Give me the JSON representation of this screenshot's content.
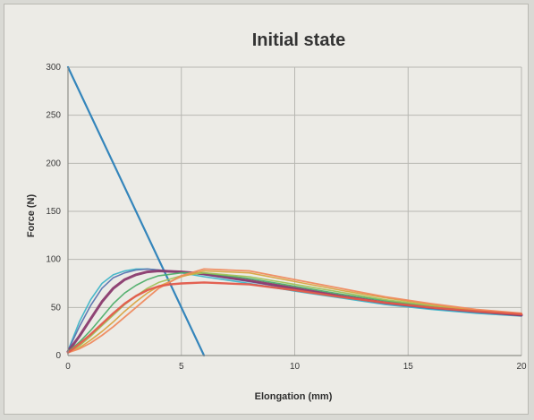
{
  "chart_data": {
    "type": "line",
    "title": "Initial state",
    "xlabel": "Elongation (mm)",
    "ylabel": "Force (N)",
    "xlim": [
      0,
      20
    ],
    "ylim": [
      0,
      300
    ],
    "xticks": [
      0,
      5,
      10,
      15,
      20
    ],
    "yticks": [
      0,
      50,
      100,
      150,
      200,
      250,
      300
    ],
    "grid": true,
    "legend": "none",
    "series": [
      {
        "color": "#2a7fb8",
        "width": 2.2,
        "x": [
          0,
          6
        ],
        "y": [
          300,
          0
        ]
      },
      {
        "color": "#3fb5c8",
        "width": 1.6,
        "x": [
          0,
          0.5,
          1,
          1.5,
          2,
          2.5,
          3,
          3.5,
          4,
          5,
          6,
          8,
          10,
          12,
          14,
          16,
          18,
          20
        ],
        "y": [
          5,
          35,
          58,
          75,
          84,
          88,
          90,
          90,
          89,
          86,
          82,
          75,
          67,
          60,
          53,
          48,
          44,
          41
        ]
      },
      {
        "color": "#5a74b0",
        "width": 1.6,
        "x": [
          0,
          0.5,
          1,
          1.5,
          2,
          2.5,
          3,
          3.5,
          4,
          5,
          6,
          8,
          10,
          12,
          14,
          16,
          18,
          20
        ],
        "y": [
          5,
          30,
          52,
          70,
          81,
          86,
          89,
          90,
          89,
          87,
          84,
          77,
          69,
          61,
          54,
          49,
          45,
          42
        ]
      },
      {
        "color": "#8a3a6e",
        "width": 3.0,
        "x": [
          0,
          0.5,
          1,
          1.5,
          2,
          2.5,
          3,
          3.5,
          4,
          5,
          6,
          8,
          10,
          12,
          14,
          16,
          18,
          20
        ],
        "y": [
          4,
          20,
          38,
          56,
          70,
          79,
          84,
          87,
          88,
          87,
          85,
          78,
          70,
          62,
          55,
          50,
          46,
          42
        ]
      },
      {
        "color": "#4fae6a",
        "width": 1.6,
        "x": [
          0,
          0.5,
          1,
          1.5,
          2,
          2.5,
          3,
          3.5,
          4,
          5,
          6,
          8,
          10,
          12,
          14,
          16,
          18,
          20
        ],
        "y": [
          4,
          14,
          26,
          40,
          54,
          65,
          73,
          79,
          83,
          86,
          86,
          80,
          72,
          64,
          57,
          51,
          46,
          43
        ]
      },
      {
        "color": "#9fc25a",
        "width": 1.6,
        "x": [
          0,
          0.5,
          1,
          1.5,
          2,
          2.5,
          3,
          3.5,
          4,
          5,
          6,
          8,
          10,
          12,
          14,
          16,
          18,
          20
        ],
        "y": [
          3,
          10,
          20,
          31,
          42,
          53,
          62,
          70,
          76,
          83,
          86,
          82,
          74,
          66,
          58,
          52,
          47,
          43
        ]
      },
      {
        "color": "#d9a441",
        "width": 1.6,
        "x": [
          0,
          0.5,
          1,
          1.5,
          2,
          2.5,
          3,
          3.5,
          4,
          5,
          6,
          8,
          10,
          12,
          14,
          16,
          18,
          20
        ],
        "y": [
          3,
          8,
          16,
          25,
          35,
          46,
          56,
          65,
          72,
          82,
          88,
          86,
          77,
          68,
          60,
          53,
          47,
          43
        ]
      },
      {
        "color": "#ef8a5e",
        "width": 1.8,
        "x": [
          0,
          0.5,
          1,
          1.5,
          2,
          2.5,
          3,
          3.5,
          4,
          5,
          6,
          8,
          10,
          12,
          14,
          16,
          18,
          20
        ],
        "y": [
          3,
          7,
          13,
          21,
          30,
          40,
          50,
          60,
          70,
          83,
          90,
          88,
          79,
          70,
          61,
          54,
          48,
          44
        ]
      },
      {
        "color": "#e35a4a",
        "width": 2.4,
        "x": [
          0,
          0.5,
          1,
          1.5,
          2,
          2.5,
          3,
          3.5,
          4,
          4.5,
          5,
          6,
          8,
          10,
          12,
          14,
          16,
          18,
          20
        ],
        "y": [
          3,
          12,
          22,
          33,
          44,
          54,
          62,
          68,
          72,
          74,
          75,
          76,
          74,
          68,
          61,
          55,
          50,
          46,
          43
        ]
      }
    ]
  }
}
